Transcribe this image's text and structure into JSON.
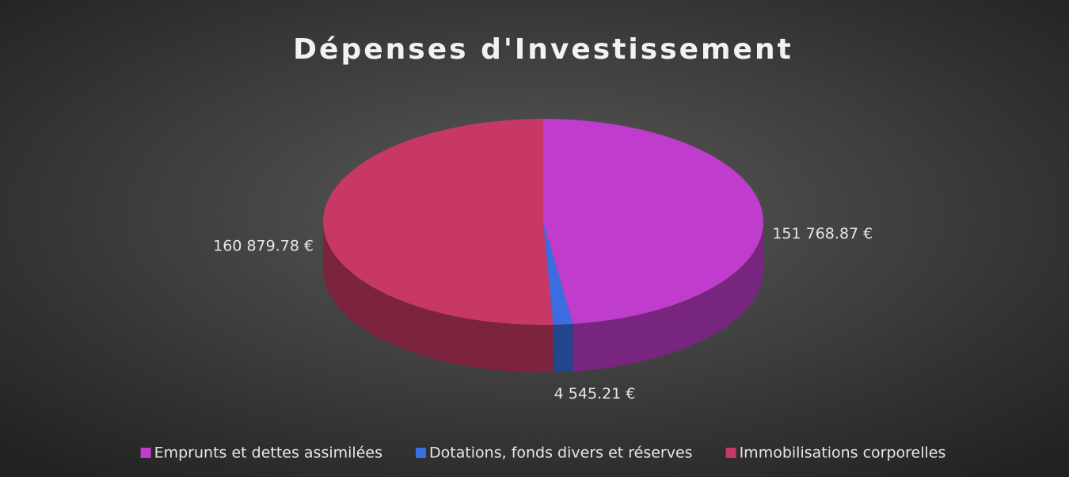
{
  "chart_data": {
    "type": "pie3d",
    "title": "Dépenses d'Investissement",
    "categories": [
      "Emprunts et dettes assimilées",
      "Dotations, fonds divers et réserves",
      "Immobilisations corporelles"
    ],
    "values": [
      151768.87,
      4545.21,
      160879.78
    ],
    "value_labels": [
      "151 768.87 €",
      "4 545.21 €",
      "160 879.78 €"
    ],
    "colors": [
      "#c03ccc",
      "#3a6ee0",
      "#c83864"
    ],
    "legend": "bottom"
  }
}
